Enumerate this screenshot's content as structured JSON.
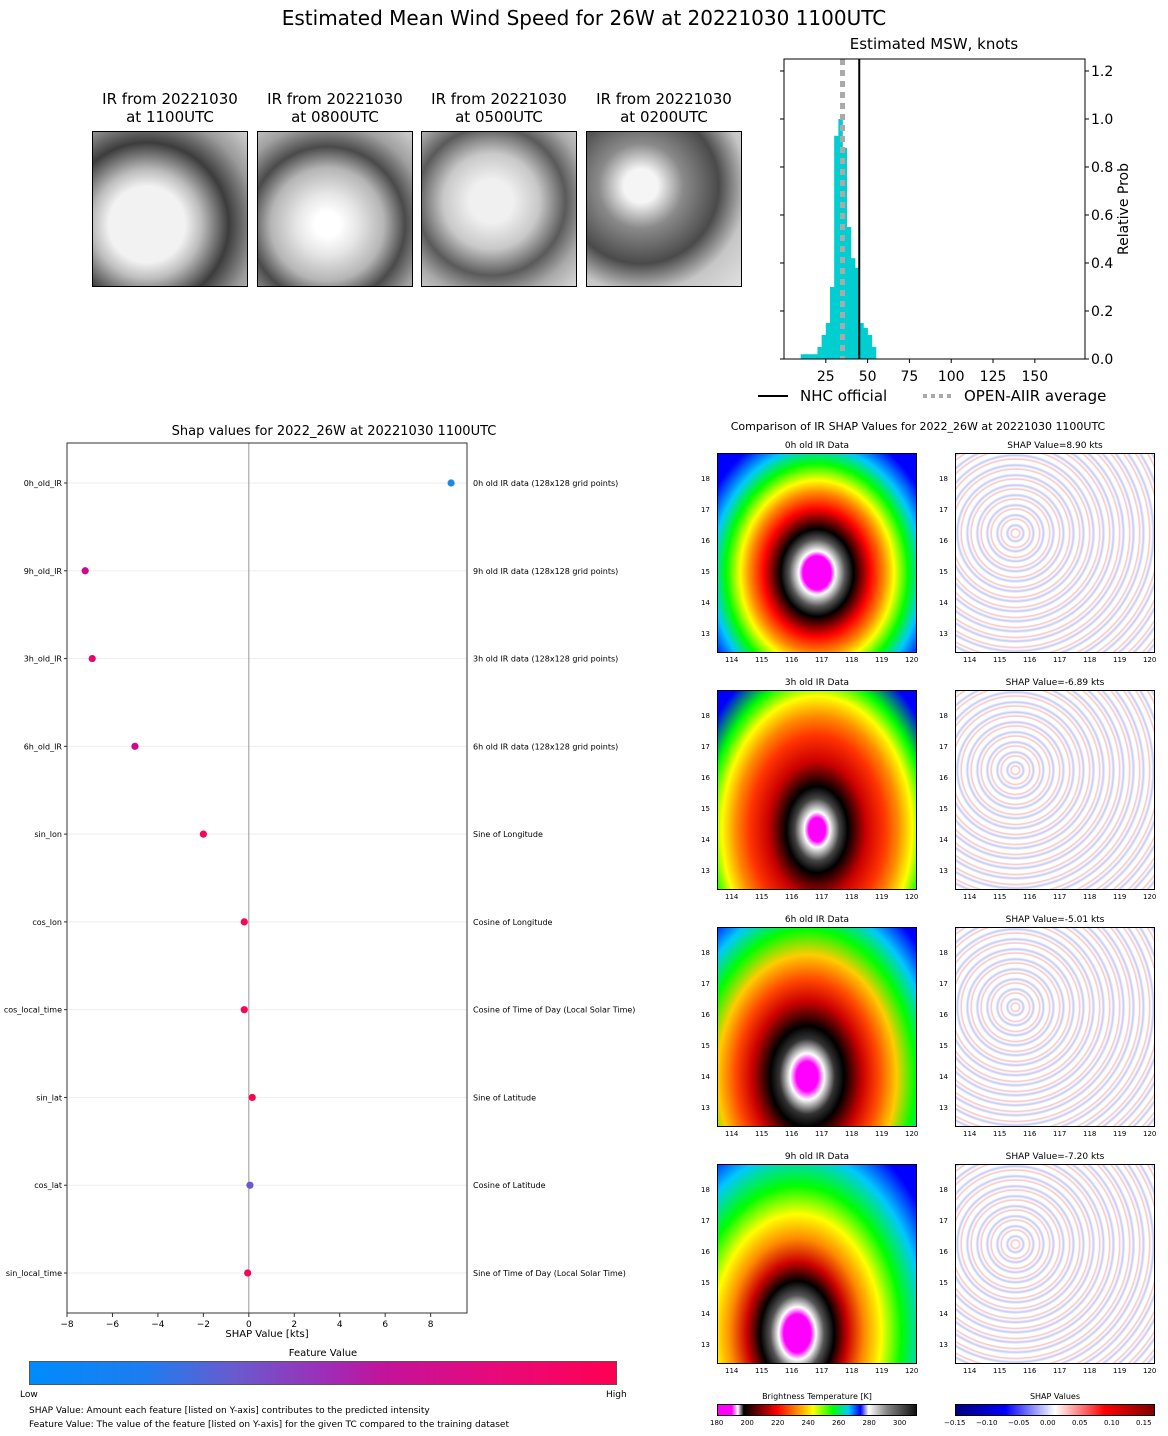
{
  "title": "Estimated Mean Wind Speed for 26W at 20221030 1100UTC",
  "ir_thumbnails": [
    {
      "line1": "IR from 20221030",
      "line2": "at 1100UTC"
    },
    {
      "line1": "IR from 20221030",
      "line2": "at 0800UTC"
    },
    {
      "line1": "IR from 20221030",
      "line2": "at 0500UTC"
    },
    {
      "line1": "IR from 20221030",
      "line2": "at 0200UTC"
    }
  ],
  "chart_data": [
    {
      "type": "bar",
      "title": "Estimated MSW, knots",
      "ylabel": "Relative Prob",
      "xlim": [
        0,
        180
      ],
      "ylim": [
        0,
        1.25
      ],
      "xticks": [
        "25",
        "50",
        "75",
        "100",
        "125",
        "150"
      ],
      "yticks": [
        "0.0",
        "0.2",
        "0.4",
        "0.6",
        "0.8",
        "1.0",
        "1.2"
      ],
      "bin_width": 2.5,
      "bins": [
        {
          "x": 10,
          "y": 0.02
        },
        {
          "x": 12.5,
          "y": 0.02
        },
        {
          "x": 15,
          "y": 0.02
        },
        {
          "x": 17.5,
          "y": 0.02
        },
        {
          "x": 20,
          "y": 0.05
        },
        {
          "x": 22.5,
          "y": 0.1
        },
        {
          "x": 25,
          "y": 0.15
        },
        {
          "x": 27.5,
          "y": 0.3
        },
        {
          "x": 30,
          "y": 0.93
        },
        {
          "x": 32.5,
          "y": 1.0
        },
        {
          "x": 35,
          "y": 0.88
        },
        {
          "x": 37.5,
          "y": 0.55
        },
        {
          "x": 40,
          "y": 0.42
        },
        {
          "x": 42.5,
          "y": 0.38
        },
        {
          "x": 45,
          "y": 0.15
        },
        {
          "x": 47.5,
          "y": 0.13
        },
        {
          "x": 50,
          "y": 0.1
        },
        {
          "x": 52.5,
          "y": 0.05
        },
        {
          "x": 55,
          "y": 0.0
        }
      ],
      "nhc_official": 45,
      "openaiir_average": 35,
      "legend": [
        "NHC official",
        "OPEN-AIIR average"
      ]
    },
    {
      "type": "scatter",
      "title": "Shap values for 2022_26W at 20221030 1100UTC",
      "xlabel": "SHAP Value [kts]",
      "xlim": [
        -8,
        9.6
      ],
      "xticks": [
        "-8",
        "-6",
        "-4",
        "-2",
        "0",
        "2",
        "4",
        "6",
        "8"
      ],
      "features": [
        {
          "name": "0h_old_IR",
          "desc": "0h old IR data (128x128 grid points)",
          "shap": 8.9,
          "color": "#1e88e5"
        },
        {
          "name": "9h_old_IR",
          "desc": "9h old IR data (128x128 grid points)",
          "shap": -7.2,
          "color": "#cc0a8e"
        },
        {
          "name": "3h_old_IR",
          "desc": "3h old IR data (128x128 grid points)",
          "shap": -6.89,
          "color": "#e5066e"
        },
        {
          "name": "6h_old_IR",
          "desc": "6h old IR data (128x128 grid points)",
          "shap": -5.01,
          "color": "#d1078c"
        },
        {
          "name": "sin_lon",
          "desc": "Sine of Longitude",
          "shap": -2.0,
          "color": "#f50552"
        },
        {
          "name": "cos_lon",
          "desc": "Cosine of Longitude",
          "shap": -0.2,
          "color": "#f50552"
        },
        {
          "name": "cos_local_time",
          "desc": "Cosine of Time of Day (Local Solar Time)",
          "shap": -0.2,
          "color": "#f50552"
        },
        {
          "name": "sin_lat",
          "desc": "Sine of Latitude",
          "shap": 0.15,
          "color": "#f50552"
        },
        {
          "name": "cos_lat",
          "desc": "Cosine of Latitude",
          "shap": 0.05,
          "color": "#6a5acd"
        },
        {
          "name": "sin_local_time",
          "desc": "Sine of Time of Day (Local Solar Time)",
          "shap": -0.05,
          "color": "#f50552"
        }
      ],
      "colorbar": {
        "title": "Feature Value",
        "low": "Low",
        "high": "High"
      }
    }
  ],
  "notes": {
    "line1": "SHAP Value: Amount each feature [listed on Y-axis] contributes to the predicted intensity",
    "line2": "Feature Value: The value of the feature [listed on Y-axis] for the given TC compared to the training dataset"
  },
  "comparison": {
    "title": "Comparison of IR SHAP Values for 2022_26W at 20221030 1100UTC",
    "rows": [
      {
        "ir_title": "0h old IR Data",
        "shap_title": "SHAP Value=8.90 kts"
      },
      {
        "ir_title": "3h old IR Data",
        "shap_title": "SHAP Value=-6.89 kts"
      },
      {
        "ir_title": "6h old IR Data",
        "shap_title": "SHAP Value=-5.01 kts"
      },
      {
        "ir_title": "9h old IR Data",
        "shap_title": "SHAP Value=-7.20 kts"
      }
    ],
    "lat_ticks": [
      "18",
      "17",
      "16",
      "15",
      "14",
      "13"
    ],
    "lon_ticks": [
      "114",
      "115",
      "116",
      "117",
      "118",
      "119",
      "120"
    ],
    "bt_colorbar": {
      "title": "Brightness Temperature [K]",
      "ticks": [
        "180",
        "200",
        "220",
        "240",
        "260",
        "280",
        "300"
      ]
    },
    "shap_colorbar": {
      "title": "SHAP Values",
      "ticks": [
        "−0.15",
        "−0.10",
        "−0.05",
        "0.00",
        "0.05",
        "0.10",
        "0.15"
      ]
    }
  }
}
